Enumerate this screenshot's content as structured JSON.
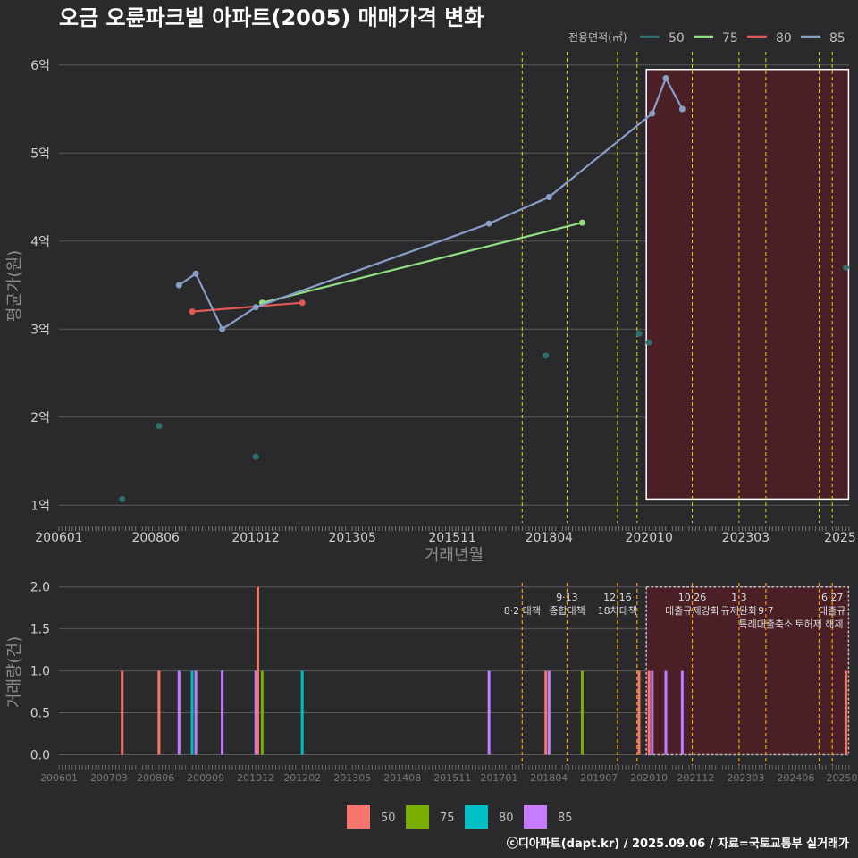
{
  "chart_data": {
    "title": "오금 오륜파크빌 아파트(2005) 매매가격 변화",
    "footer": "ⓒ디아파트(dapt.kr) / 2025.09.06 / 자료=국토교통부 실거래가",
    "legend_title": "전용면적(㎡)",
    "x_range": [
      2006.0,
      2025.75
    ],
    "highlight_range": [
      2020.75,
      2025.67
    ],
    "series_colors": {
      "50": "#2f6f6f",
      "75": "#90e080",
      "80": "#e05a5a",
      "85": "#8a9ec8"
    },
    "bar_colors": {
      "50": "#f8766d",
      "75": "#7cae00",
      "80": "#00bfc4",
      "85": "#c77cff"
    },
    "price_chart": {
      "type": "line",
      "xlabel": "거래년월",
      "ylabel": "평균가(원)",
      "ylim": [
        0.8,
        6.15
      ],
      "yticks": [
        1,
        2,
        3,
        4,
        5,
        6
      ],
      "ytick_labels": [
        "1억",
        "2억",
        "3억",
        "4억",
        "5억",
        "6억"
      ],
      "xticks": [
        2006.0,
        2008.417,
        2010.917,
        2013.333,
        2015.833,
        2018.25,
        2020.75,
        2023.167,
        2025.67
      ],
      "xtick_labels": [
        "200601",
        "200806",
        "201012",
        "201305",
        "201511",
        "201804",
        "202010",
        "202303",
        "2025"
      ],
      "series": [
        {
          "name": "50",
          "points": [
            [
              2007.58,
              1.07
            ],
            [
              2008.5,
              1.9
            ],
            [
              2010.92,
              1.55
            ],
            [
              2018.17,
              2.7
            ],
            [
              2020.5,
              2.95
            ],
            [
              2020.75,
              2.85
            ],
            [
              2025.67,
              3.7
            ]
          ],
          "connected": false
        },
        {
          "name": "75",
          "points": [
            [
              2011.08,
              3.3
            ],
            [
              2019.08,
              4.21
            ]
          ],
          "connected": true
        },
        {
          "name": "80",
          "points": [
            [
              2009.33,
              3.2
            ],
            [
              2012.08,
              3.3
            ]
          ],
          "connected": true
        },
        {
          "name": "85",
          "points": [
            [
              2009.0,
              3.5
            ],
            [
              2009.42,
              3.63
            ],
            [
              2010.08,
              3.0
            ],
            [
              2010.92,
              3.25
            ],
            [
              2016.75,
              4.2
            ],
            [
              2018.25,
              4.5
            ],
            [
              2020.83,
              5.45
            ],
            [
              2021.17,
              5.85
            ],
            [
              2021.58,
              5.5
            ]
          ],
          "connected": true
        }
      ]
    },
    "volume_chart": {
      "type": "bar",
      "ylabel": "거래량(건)",
      "ylim": [
        -0.08,
        2.05
      ],
      "yticks": [
        0.0,
        0.5,
        1.0,
        1.5,
        2.0
      ],
      "ytick_labels": [
        "0.0",
        "0.5",
        "1.0",
        "1.5",
        "2.0"
      ],
      "xticks": [
        2006.0,
        2007.25,
        2008.417,
        2009.667,
        2010.917,
        2012.083,
        2013.333,
        2014.583,
        2015.833,
        2017.0,
        2018.25,
        2019.5,
        2020.75,
        2021.917,
        2023.167,
        2024.417,
        2025.67
      ],
      "xtick_labels": [
        "200601",
        "200703",
        "200806",
        "200909",
        "201012",
        "201202",
        "201305",
        "201408",
        "201511",
        "201701",
        "201804",
        "201907",
        "202010",
        "202112",
        "202303",
        "202406",
        "20250"
      ],
      "bars": [
        {
          "x": 2007.58,
          "area": "50",
          "value": 1
        },
        {
          "x": 2008.5,
          "area": "50",
          "value": 1
        },
        {
          "x": 2009.0,
          "area": "85",
          "value": 1
        },
        {
          "x": 2009.33,
          "area": "80",
          "value": 1
        },
        {
          "x": 2009.42,
          "area": "85",
          "value": 1
        },
        {
          "x": 2010.08,
          "area": "85",
          "value": 1
        },
        {
          "x": 2010.92,
          "area": "85",
          "value": 1
        },
        {
          "x": 2010.97,
          "area": "50",
          "value": 2
        },
        {
          "x": 2011.08,
          "area": "75",
          "value": 1
        },
        {
          "x": 2012.08,
          "area": "80",
          "value": 1
        },
        {
          "x": 2016.75,
          "area": "85",
          "value": 1
        },
        {
          "x": 2018.17,
          "area": "50",
          "value": 1
        },
        {
          "x": 2018.25,
          "area": "85",
          "value": 1
        },
        {
          "x": 2019.08,
          "area": "75",
          "value": 1
        },
        {
          "x": 2020.5,
          "area": "50",
          "value": 1
        },
        {
          "x": 2020.75,
          "area": "50",
          "value": 1
        },
        {
          "x": 2020.83,
          "area": "85",
          "value": 1
        },
        {
          "x": 2021.17,
          "area": "85",
          "value": 1
        },
        {
          "x": 2021.58,
          "area": "85",
          "value": 1
        },
        {
          "x": 2025.67,
          "area": "50",
          "value": 1
        }
      ]
    },
    "policy_lines": [
      2017.58,
      2018.7,
      2019.96,
      2020.45,
      2021.83,
      2023.0,
      2023.67,
      2025.0,
      2025.33
    ],
    "policy_labels": [
      {
        "x": 2017.58,
        "lines": [
          "",
          "8·2 대책"
        ]
      },
      {
        "x": 2018.7,
        "lines": [
          "9·13",
          "종합대책"
        ]
      },
      {
        "x": 2019.96,
        "lines": [
          "12·16",
          "18차대책"
        ]
      },
      {
        "x": 2021.83,
        "lines": [
          "10·26",
          "대출규제강화"
        ]
      },
      {
        "x": 2023.0,
        "lines": [
          "1·3",
          "규제완화"
        ]
      },
      {
        "x": 2023.67,
        "lines": [
          "",
          "9·7",
          "특례대출축소"
        ]
      },
      {
        "x": 2025.0,
        "lines": [
          "",
          "",
          "토허제 해제"
        ]
      },
      {
        "x": 2025.33,
        "lines": [
          "6·27",
          "대출규"
        ]
      }
    ]
  }
}
